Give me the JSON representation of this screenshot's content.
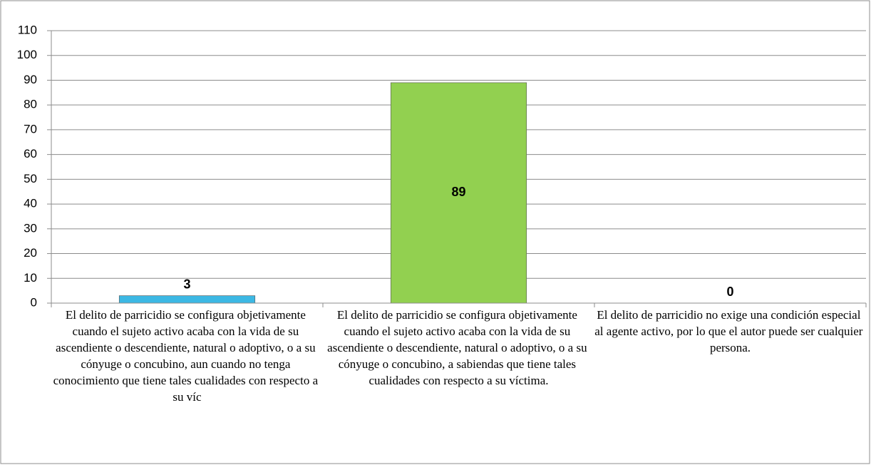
{
  "chart_data": {
    "type": "bar",
    "categories": [
      "El delito de parricidio se configura objetivamente cuando el sujeto activo acaba con la vida de su ascendiente o descendiente, natural o adoptivo, o a su cónyuge o concubino, aun cuando no tenga conocimiento que tiene tales cualidades con respecto a su víc",
      "El delito de parricidio se configura objetivamente cuando el sujeto activo acaba con la vida de su ascendiente o descendiente, natural o adoptivo, o a su cónyuge o concubino, a sabiendas que tiene tales cualidades con respecto a su víctima.",
      "El delito de parricidio no exige una condición especial al agente activo, por lo que el autor puede ser cualquier persona."
    ],
    "values": [
      3,
      89,
      0
    ],
    "colors": [
      "#3cb8e4",
      "#92d050",
      "#8064a2"
    ],
    "ylim": [
      0,
      110
    ],
    "yticks": [
      0,
      10,
      20,
      30,
      40,
      50,
      60,
      70,
      80,
      90,
      100,
      110
    ],
    "grid": true
  }
}
